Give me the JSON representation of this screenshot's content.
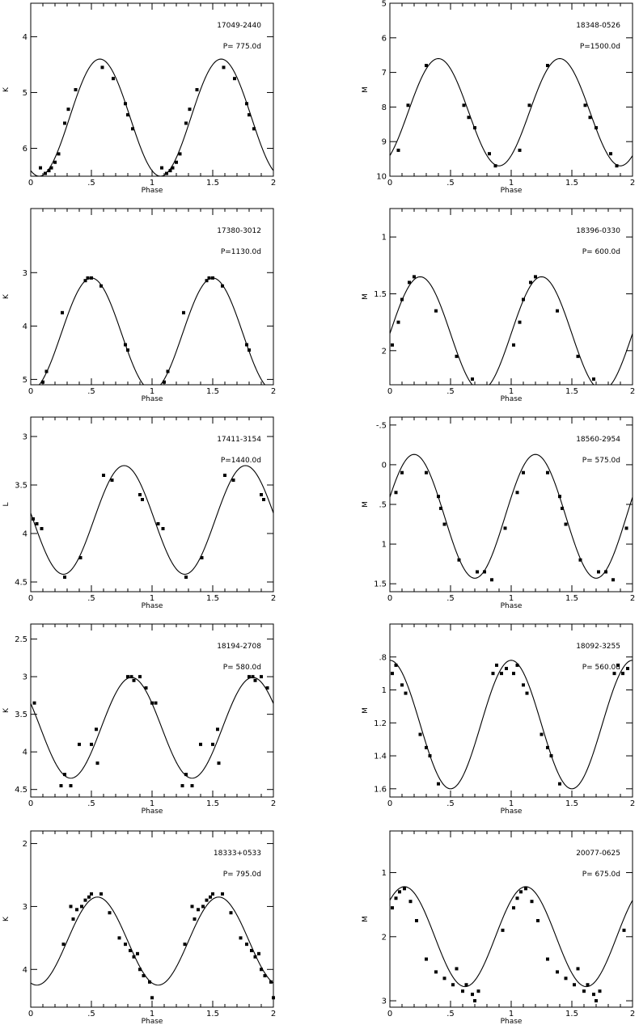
{
  "chart_data": [
    {
      "type": "scatter",
      "star": "17049-2440",
      "period_label": "P= 775.0d",
      "xlabel": "Phase",
      "ylabel": "K",
      "xlim": [
        0,
        2
      ],
      "ylim": [
        6.5,
        3.4
      ],
      "inverted_y": true,
      "x_ticks": [
        0,
        0.5,
        1,
        1.5,
        2
      ],
      "x_tick_labels": [
        "0",
        ".5",
        "1",
        "1.5",
        "2"
      ],
      "y_ticks": [
        4,
        5,
        6
      ],
      "y_tick_labels": [
        "4",
        "5",
        "6"
      ],
      "fit": {
        "mean": 5.45,
        "amplitude": 1.05,
        "phase_max": 0.57
      },
      "points": {
        "x": [
          0.08,
          0.12,
          0.15,
          0.17,
          0.2,
          0.23,
          0.28,
          0.31,
          0.37,
          0.59,
          0.68,
          0.78,
          0.8,
          0.84,
          1.08,
          1.12,
          1.15,
          1.17,
          1.2,
          1.23,
          1.28,
          1.31,
          1.37,
          1.59,
          1.68,
          1.78,
          1.8,
          1.84
        ],
        "y": [
          6.35,
          6.45,
          6.4,
          6.35,
          6.25,
          6.1,
          5.55,
          5.3,
          4.95,
          4.55,
          4.75,
          5.2,
          5.4,
          5.65,
          6.35,
          6.45,
          6.4,
          6.35,
          6.25,
          6.1,
          5.55,
          5.3,
          4.95,
          4.55,
          4.75,
          5.2,
          5.4,
          5.65
        ]
      }
    },
    {
      "type": "scatter",
      "star": "18348-0526",
      "period_label": "P=1500.0d",
      "xlabel": "Phase",
      "ylabel": "M",
      "xlim": [
        0,
        2
      ],
      "ylim": [
        10,
        5
      ],
      "inverted_y": true,
      "x_ticks": [
        0,
        0.5,
        1,
        1.5,
        2
      ],
      "x_tick_labels": [
        "0",
        ".5",
        "1",
        "1.5",
        "2"
      ],
      "y_ticks": [
        5,
        6,
        7,
        8,
        9,
        10
      ],
      "y_tick_labels": [
        "5",
        "6",
        "7",
        "8",
        "9",
        "10"
      ],
      "fit": {
        "mean": 8.15,
        "amplitude": 1.55,
        "phase_max": 0.4
      },
      "points": {
        "x": [
          0.07,
          0.15,
          0.3,
          0.61,
          0.65,
          0.7,
          0.82,
          0.87,
          1.07,
          1.15,
          1.3,
          1.61,
          1.65,
          1.7,
          1.82,
          1.87
        ],
        "y": [
          9.25,
          7.95,
          6.8,
          7.95,
          8.3,
          8.6,
          9.35,
          9.7,
          9.25,
          7.95,
          6.8,
          7.95,
          8.3,
          8.6,
          9.35,
          9.7
        ]
      }
    },
    {
      "type": "scatter",
      "star": "17380-3012",
      "period_label": "P=1130.0d",
      "xlabel": "Phase",
      "ylabel": "K",
      "xlim": [
        0,
        2
      ],
      "ylim": [
        5.1,
        1.8
      ],
      "inverted_y": true,
      "x_ticks": [
        0,
        0.5,
        1,
        1.5,
        2
      ],
      "x_tick_labels": [
        "0",
        ".5",
        "1",
        "1.5",
        "2"
      ],
      "y_ticks": [
        3,
        4,
        5
      ],
      "y_tick_labels": [
        "3",
        "4",
        "5"
      ],
      "fit": {
        "mean": 4.15,
        "amplitude": 1.05,
        "phase_max": 0.5
      },
      "points": {
        "x": [
          0.1,
          0.13,
          0.26,
          0.45,
          0.47,
          0.5,
          0.58,
          0.78,
          0.8,
          1.1,
          1.13,
          1.26,
          1.45,
          1.47,
          1.5,
          1.58,
          1.78,
          1.8
        ],
        "y": [
          5.05,
          4.85,
          3.75,
          3.15,
          3.1,
          3.1,
          3.25,
          4.35,
          4.45,
          5.05,
          4.85,
          3.75,
          3.15,
          3.1,
          3.1,
          3.25,
          4.35,
          4.45
        ]
      }
    },
    {
      "type": "scatter",
      "star": "18396-0330",
      "period_label": "P= 600.0d",
      "xlabel": "Phase",
      "ylabel": "M",
      "xlim": [
        0,
        2
      ],
      "ylim": [
        2.3,
        0.75
      ],
      "inverted_y": true,
      "x_ticks": [
        0,
        0.5,
        1,
        1.5,
        2
      ],
      "x_tick_labels": [
        "0",
        ".5",
        "1",
        "1.5",
        "2"
      ],
      "y_ticks": [
        1,
        1.5,
        2
      ],
      "y_tick_labels": [
        "1",
        "1.5",
        "2"
      ],
      "fit": {
        "mean": 1.85,
        "amplitude": 0.5,
        "phase_max": 0.25
      },
      "points": {
        "x": [
          0.02,
          0.07,
          0.1,
          0.16,
          0.2,
          0.38,
          0.55,
          0.68,
          1.02,
          1.07,
          1.1,
          1.16,
          1.2,
          1.38,
          1.55,
          1.68
        ],
        "y": [
          1.95,
          1.75,
          1.55,
          1.4,
          1.35,
          1.65,
          2.05,
          2.25,
          1.95,
          1.75,
          1.55,
          1.4,
          1.35,
          1.65,
          2.05,
          2.25
        ]
      }
    },
    {
      "type": "scatter",
      "star": "17411-3154",
      "period_label": "P=1440.0d",
      "xlabel": "Phase",
      "ylabel": "L",
      "xlim": [
        0,
        2
      ],
      "ylim": [
        4.6,
        2.8
      ],
      "inverted_y": true,
      "x_ticks": [
        0,
        0.5,
        1,
        1.5,
        2
      ],
      "x_tick_labels": [
        "0",
        ".5",
        "1",
        "1.5",
        "2"
      ],
      "y_ticks": [
        3,
        3.5,
        4,
        4.5
      ],
      "y_tick_labels": [
        "3",
        "3.5",
        "4",
        "4.5"
      ],
      "fit": {
        "mean": 3.86,
        "amplitude": 0.56,
        "phase_max": 0.77
      },
      "points": {
        "x": [
          0.02,
          0.05,
          0.09,
          0.28,
          0.41,
          0.6,
          0.67,
          0.9,
          0.92,
          1.05,
          1.09,
          1.28,
          1.41,
          1.6,
          1.67,
          1.9,
          1.92
        ],
        "y": [
          3.85,
          3.9,
          3.95,
          4.45,
          4.25,
          3.4,
          3.45,
          3.6,
          3.65,
          3.9,
          3.95,
          4.45,
          4.25,
          3.4,
          3.45,
          3.6,
          3.65
        ]
      }
    },
    {
      "type": "scatter",
      "star": "18560-2954",
      "period_label": "P= 575.0d",
      "xlabel": "Phase",
      "ylabel": "M",
      "xlim": [
        0,
        2
      ],
      "ylim": [
        1.6,
        -0.6
      ],
      "inverted_y": true,
      "x_ticks": [
        0,
        0.5,
        1,
        1.5,
        2
      ],
      "x_tick_labels": [
        "0",
        ".5",
        "1",
        "1.5",
        "2"
      ],
      "y_ticks": [
        -0.5,
        0,
        0.5,
        1,
        1.5
      ],
      "y_tick_labels": [
        "-.5",
        "0",
        ".5",
        "1",
        "1.5"
      ],
      "fit": {
        "mean": 0.65,
        "amplitude": 0.78,
        "phase_max": 0.2
      },
      "points": {
        "x": [
          0.05,
          0.1,
          0.3,
          0.4,
          0.42,
          0.45,
          0.57,
          0.72,
          0.78,
          0.84,
          0.95,
          1.05,
          1.1,
          1.3,
          1.4,
          1.42,
          1.45,
          1.57,
          1.72,
          1.78,
          1.84,
          1.95
        ],
        "y": [
          0.35,
          0.1,
          0.1,
          0.4,
          0.55,
          0.75,
          1.2,
          1.35,
          1.35,
          1.45,
          0.8,
          0.35,
          0.1,
          0.1,
          0.4,
          0.55,
          0.75,
          1.2,
          1.35,
          1.35,
          1.45,
          0.8
        ]
      }
    },
    {
      "type": "scatter",
      "star": "18194-2708",
      "period_label": "P= 580.0d",
      "xlabel": "Phase",
      "ylabel": "K",
      "xlim": [
        0,
        2
      ],
      "ylim": [
        4.6,
        2.3
      ],
      "inverted_y": true,
      "x_ticks": [
        0,
        0.5,
        1,
        1.5,
        2
      ],
      "x_tick_labels": [
        "0",
        ".5",
        "1",
        "1.5",
        "2"
      ],
      "y_ticks": [
        2.5,
        3,
        3.5,
        4,
        4.5
      ],
      "y_tick_labels": [
        "2.5",
        "3",
        "3.5",
        "4",
        "4.5"
      ],
      "fit": {
        "mean": 3.68,
        "amplitude": 0.67,
        "phase_max": 0.83
      },
      "points": {
        "x": [
          0.03,
          0.25,
          0.28,
          0.33,
          0.4,
          0.5,
          0.54,
          0.55,
          0.8,
          0.83,
          0.85,
          0.9,
          0.95,
          1.0,
          1.03,
          1.25,
          1.28,
          1.33,
          1.4,
          1.5,
          1.54,
          1.55,
          1.8,
          1.83,
          1.85,
          1.9,
          1.95
        ],
        "y": [
          3.35,
          4.45,
          4.3,
          4.45,
          3.9,
          3.9,
          3.7,
          4.15,
          3.0,
          3.0,
          3.05,
          3.0,
          3.15,
          3.35,
          3.35,
          4.45,
          4.3,
          4.45,
          3.9,
          3.9,
          3.7,
          4.15,
          3.0,
          3.0,
          3.05,
          3.0,
          3.15
        ]
      }
    },
    {
      "type": "scatter",
      "star": "18092-3255",
      "period_label": "P= 560.0d",
      "xlabel": "Phase",
      "ylabel": "M",
      "xlim": [
        0,
        2
      ],
      "ylim": [
        1.65,
        0.6
      ],
      "inverted_y": true,
      "x_ticks": [
        0,
        0.5,
        1,
        1.5,
        2
      ],
      "x_tick_labels": [
        "0",
        ".5",
        "1",
        "1.5",
        "2"
      ],
      "y_ticks": [
        0.8,
        1,
        1.2,
        1.4,
        1.6
      ],
      "y_tick_labels": [
        ".8",
        "1",
        "1.2",
        "1.4",
        "1.6"
      ],
      "fit": {
        "mean": 1.21,
        "amplitude": 0.39,
        "phase_max": 0.0
      },
      "points": {
        "x": [
          0.02,
          0.05,
          0.1,
          0.13,
          0.25,
          0.3,
          0.33,
          0.4,
          0.85,
          0.88,
          0.92,
          0.96,
          1.02,
          1.05,
          1.1,
          1.13,
          1.25,
          1.3,
          1.33,
          1.4,
          1.85,
          1.88,
          1.92,
          1.96
        ],
        "y": [
          0.9,
          0.85,
          0.97,
          1.02,
          1.27,
          1.35,
          1.4,
          1.57,
          0.9,
          0.85,
          0.9,
          0.87,
          0.9,
          0.85,
          0.97,
          1.02,
          1.27,
          1.35,
          1.4,
          1.57,
          0.9,
          0.85,
          0.9,
          0.87
        ]
      }
    },
    {
      "type": "scatter",
      "star": "18333+0533",
      "period_label": "P= 795.0d",
      "xlabel": "Phase",
      "ylabel": "K",
      "xlim": [
        0,
        2
      ],
      "ylim": [
        4.6,
        1.8
      ],
      "inverted_y": true,
      "x_ticks": [
        0,
        0.5,
        1,
        1.5,
        2
      ],
      "x_tick_labels": [
        "0",
        ".5",
        "1",
        "1.5",
        "2"
      ],
      "y_ticks": [
        2,
        3,
        4
      ],
      "y_tick_labels": [
        "2",
        "3",
        "4"
      ],
      "fit": {
        "mean": 3.55,
        "amplitude": 0.7,
        "phase_max": 0.55
      },
      "points": {
        "x": [
          0.27,
          0.33,
          0.35,
          0.38,
          0.42,
          0.45,
          0.48,
          0.5,
          0.58,
          0.65,
          0.73,
          0.78,
          0.82,
          0.85,
          0.88,
          0.9,
          0.93,
          0.98,
          1.0,
          1.27,
          1.33,
          1.35,
          1.38,
          1.42,
          1.45,
          1.48,
          1.5,
          1.58,
          1.65,
          1.73,
          1.78,
          1.82,
          1.85,
          1.88,
          1.9,
          1.93,
          1.98,
          2.0
        ],
        "y": [
          3.6,
          3.0,
          3.2,
          3.05,
          3.0,
          2.9,
          2.85,
          2.8,
          2.8,
          3.1,
          3.5,
          3.6,
          3.7,
          3.8,
          3.75,
          4.0,
          4.1,
          4.2,
          4.45,
          3.6,
          3.0,
          3.2,
          3.05,
          3.0,
          2.9,
          2.85,
          2.8,
          2.8,
          3.1,
          3.5,
          3.6,
          3.7,
          3.8,
          3.75,
          4.0,
          4.1,
          4.2,
          4.45
        ]
      }
    },
    {
      "type": "scatter",
      "star": "20077-0625",
      "period_label": "P= 675.0d",
      "xlabel": "Phase",
      "ylabel": "M",
      "xlim": [
        0,
        2
      ],
      "ylim": [
        3.1,
        0.35
      ],
      "inverted_y": true,
      "x_ticks": [
        0,
        0.5,
        1,
        1.5,
        2
      ],
      "x_tick_labels": [
        "0",
        ".5",
        "1",
        "1.5",
        "2"
      ],
      "y_ticks": [
        1,
        2,
        3
      ],
      "y_tick_labels": [
        "1",
        "2",
        "3"
      ],
      "fit": {
        "mean": 2.0,
        "amplitude": 0.78,
        "phase_max": 0.12
      },
      "points": {
        "x": [
          0.02,
          0.05,
          0.08,
          0.12,
          0.17,
          0.22,
          0.3,
          0.38,
          0.45,
          0.52,
          0.55,
          0.6,
          0.63,
          0.68,
          0.7,
          0.73,
          0.93,
          1.02,
          1.05,
          1.08,
          1.12,
          1.17,
          1.22,
          1.3,
          1.38,
          1.45,
          1.52,
          1.55,
          1.6,
          1.63,
          1.68,
          1.7,
          1.73,
          1.93
        ],
        "y": [
          1.55,
          1.4,
          1.3,
          1.25,
          1.45,
          1.75,
          2.35,
          2.55,
          2.65,
          2.75,
          2.5,
          2.85,
          2.75,
          2.9,
          3.0,
          2.85,
          1.9,
          1.55,
          1.4,
          1.3,
          1.25,
          1.45,
          1.75,
          2.35,
          2.55,
          2.65,
          2.75,
          2.5,
          2.85,
          2.75,
          2.9,
          3.0,
          2.85,
          1.9
        ]
      }
    }
  ]
}
